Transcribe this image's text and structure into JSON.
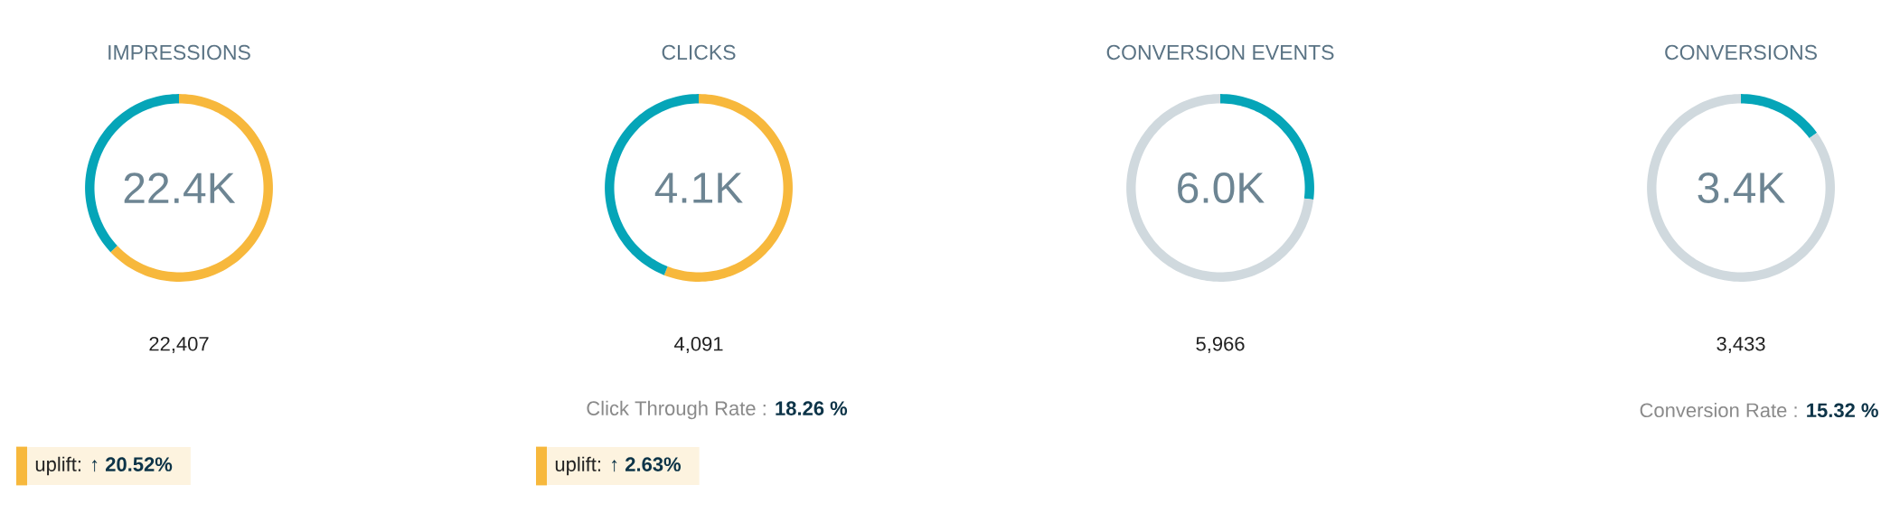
{
  "chart_data": [
    {
      "type": "donut",
      "title": "IMPRESSIONS",
      "categories": [
        null,
        null
      ],
      "values": [
        63,
        37
      ],
      "colors": [
        "#f7b83c",
        "#05a5b8"
      ],
      "annotations": [
        "22.4K",
        "22,407",
        "uplift: **↑ 20.52%**"
      ]
    },
    {
      "type": "donut",
      "title": "CLICKS",
      "subtitle": "Click Through Rate : **18.26 %**",
      "categories": [
        null,
        null
      ],
      "values": [
        56,
        44
      ],
      "colors": [
        "#f7b83c",
        "#05a5b8"
      ],
      "annotations": [
        "4.1K",
        "4,091",
        "uplift: **↑ 2.63%**"
      ]
    },
    {
      "type": "donut",
      "title": "CONVERSION EVENTS",
      "categories": [
        null,
        null
      ],
      "values": [
        27,
        73
      ],
      "colors": [
        "#05a5b8",
        "#d0d9de"
      ],
      "annotations": [
        "6.0K",
        "5,966"
      ]
    },
    {
      "type": "donut",
      "title": "CONVERSIONS",
      "subtitle": "Conversion Rate : **15.32 %**",
      "categories": [
        null,
        null
      ],
      "values": [
        15,
        85
      ],
      "colors": [
        "#05a5b8",
        "#d0d9de"
      ],
      "annotations": [
        "3.4K",
        "3,433"
      ]
    }
  ]
}
